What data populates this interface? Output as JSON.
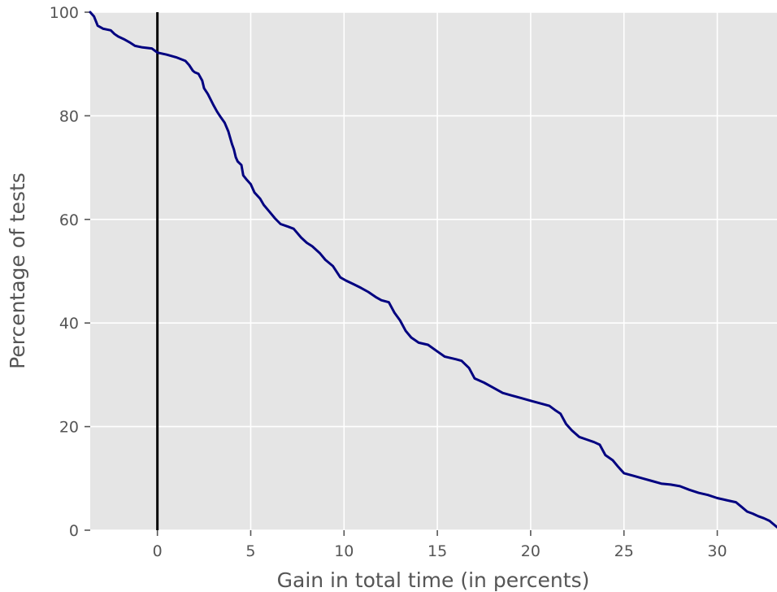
{
  "chart_data": {
    "type": "line",
    "title": "",
    "xlabel": "Gain in total time (in percents)",
    "ylabel": "Percentage of tests",
    "xlim": [
      -3.6,
      33.2
    ],
    "ylim": [
      0,
      100
    ],
    "xticks": [
      0,
      5,
      10,
      15,
      20,
      25,
      30
    ],
    "yticks": [
      0,
      20,
      40,
      60,
      80,
      100
    ],
    "grid": true,
    "background": "#e5e5e5",
    "grid_color": "#ffffff",
    "reference_line": {
      "x": 0,
      "color": "#000000"
    },
    "series": [
      {
        "color": "#000080",
        "x": [
          -3.6,
          -3.4,
          -3.2,
          -2.9,
          -2.5,
          -2.3,
          -2.1,
          -1.8,
          -1.5,
          -1.2,
          -0.8,
          -0.3,
          0.0,
          0.5,
          1.0,
          1.5,
          1.7,
          1.9,
          2.0,
          2.2,
          2.4,
          2.5,
          2.7,
          2.8,
          3.0,
          3.2,
          3.4,
          3.6,
          3.8,
          4.0,
          4.1,
          4.2,
          4.3,
          4.5,
          4.6,
          4.8,
          5.0,
          5.2,
          5.5,
          5.7,
          6.0,
          6.3,
          6.6,
          7.0,
          7.3,
          7.7,
          8.0,
          8.3,
          8.7,
          9.0,
          9.4,
          9.8,
          10.1,
          10.5,
          10.9,
          11.3,
          11.7,
          12.0,
          12.4,
          12.7,
          13.0,
          13.3,
          13.6,
          14.0,
          14.5,
          15.0,
          15.4,
          16.0,
          16.3,
          16.7,
          17.0,
          17.5,
          18.0,
          18.5,
          19.0,
          19.5,
          20.0,
          20.5,
          21.0,
          21.3,
          21.6,
          21.9,
          22.2,
          22.6,
          23.0,
          23.4,
          23.7,
          24.0,
          24.4,
          24.7,
          25.0,
          25.5,
          26.0,
          26.5,
          27.0,
          27.5,
          28.0,
          28.5,
          29.0,
          29.5,
          30.0,
          30.5,
          31.0,
          31.3,
          31.6,
          31.9,
          32.2,
          32.5,
          32.8,
          33.0,
          33.2
        ],
        "y": [
          100,
          99.2,
          97.4,
          96.8,
          96.5,
          95.8,
          95.3,
          94.8,
          94.2,
          93.5,
          93.2,
          93.0,
          92.2,
          91.8,
          91.3,
          90.6,
          89.8,
          88.7,
          88.4,
          88.1,
          86.8,
          85.3,
          84.2,
          83.5,
          82.1,
          80.8,
          79.7,
          78.7,
          77.0,
          74.5,
          73.5,
          72.0,
          71.2,
          70.5,
          68.5,
          67.6,
          66.8,
          65.2,
          64.0,
          62.8,
          61.5,
          60.2,
          59.1,
          58.6,
          58.2,
          56.5,
          55.5,
          54.8,
          53.5,
          52.2,
          51.0,
          48.8,
          48.2,
          47.5,
          46.8,
          46.0,
          45.0,
          44.4,
          44.0,
          42.0,
          40.5,
          38.5,
          37.2,
          36.2,
          35.8,
          34.5,
          33.5,
          33.0,
          32.7,
          31.3,
          29.3,
          28.5,
          27.5,
          26.5,
          26.0,
          25.5,
          25.0,
          24.5,
          24.0,
          23.2,
          22.5,
          20.5,
          19.3,
          18.0,
          17.5,
          17.0,
          16.5,
          14.5,
          13.5,
          12.2,
          11.0,
          10.5,
          10.0,
          9.5,
          9.0,
          8.8,
          8.5,
          7.8,
          7.2,
          6.8,
          6.2,
          5.8,
          5.4,
          4.5,
          3.6,
          3.2,
          2.7,
          2.3,
          1.8,
          1.2,
          0.6
        ]
      }
    ]
  }
}
